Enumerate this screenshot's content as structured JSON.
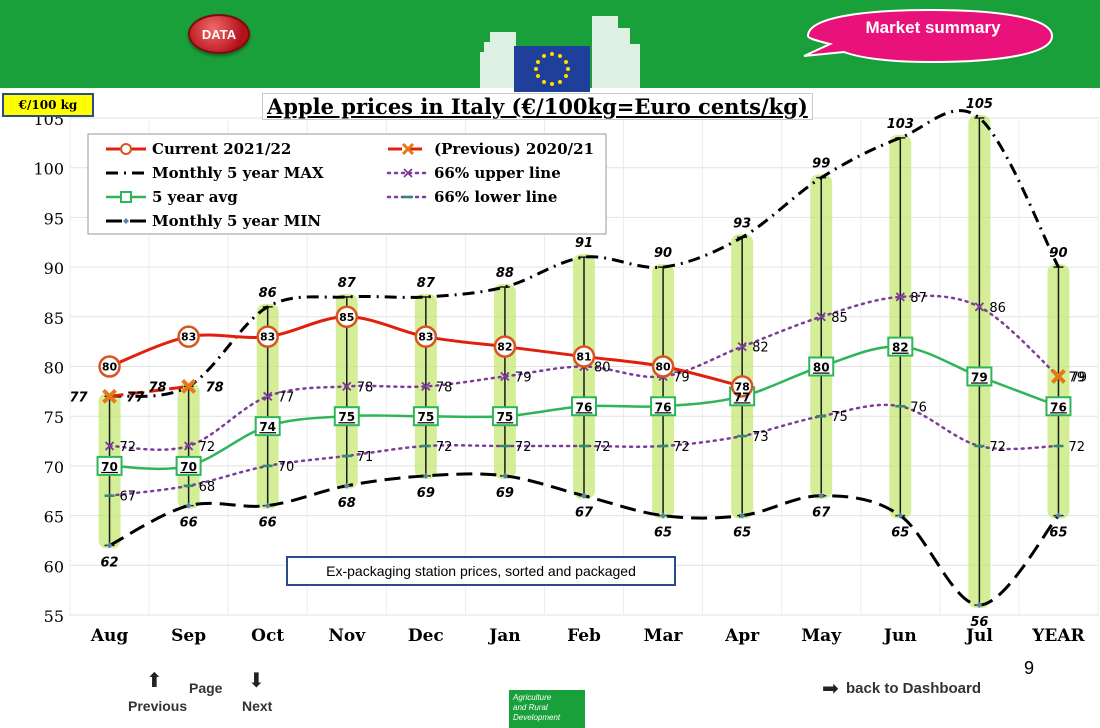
{
  "header": {
    "data_button": "DATA",
    "market_summary": "Market summary"
  },
  "unit_label": "€/100 kg",
  "note": "Ex-packaging station prices, sorted and packaged",
  "page_number": "9",
  "nav": {
    "page": "Page",
    "previous": "Previous",
    "next": "Next",
    "back": "back to Dashboard"
  },
  "footer_logo": [
    "Agriculture",
    "and Rural",
    "Development"
  ],
  "colors": {
    "header_green": "#1aa03a",
    "current": "#e0200d",
    "previous": "#e0200d",
    "five_year_avg": "#2eb558",
    "upper_lower": "#7d3b9c",
    "minmax": "#000000",
    "range_glow": "#c6e876"
  },
  "chart_data": {
    "type": "line",
    "title": "Apple prices in Italy (€/100kg=Euro cents/kg)",
    "categories": [
      "Aug",
      "Sep",
      "Oct",
      "Nov",
      "Dec",
      "Jan",
      "Feb",
      "Mar",
      "Apr",
      "May",
      "Jun",
      "Jul",
      "YEAR"
    ],
    "yticks": [
      55,
      60,
      65,
      70,
      75,
      80,
      85,
      90,
      95,
      100,
      105
    ],
    "ylim": [
      55,
      105
    ],
    "grid": true,
    "legend_position": "top-left",
    "series": [
      {
        "key": "current",
        "name": "Current 2021/22",
        "values": [
          80,
          83,
          83,
          85,
          83,
          82,
          81,
          80,
          78,
          null,
          null,
          null,
          null
        ]
      },
      {
        "key": "previous",
        "name": "(Previous) 2020/21",
        "values": [
          77,
          78,
          null,
          null,
          null,
          null,
          null,
          80,
          null,
          null,
          null,
          null,
          79
        ]
      },
      {
        "key": "max",
        "name": "Monthly 5 year MAX",
        "values": [
          77,
          78,
          86,
          87,
          87,
          88,
          91,
          90,
          93,
          99,
          103,
          105,
          90
        ]
      },
      {
        "key": "upper",
        "name": "66% upper line",
        "values": [
          72,
          72,
          77,
          78,
          78,
          79,
          80,
          79,
          82,
          85,
          87,
          86,
          79
        ]
      },
      {
        "key": "avg",
        "name": "5 year avg",
        "values": [
          70,
          70,
          74,
          75,
          75,
          75,
          76,
          76,
          77,
          80,
          82,
          79,
          76
        ]
      },
      {
        "key": "lower",
        "name": "66% lower line",
        "values": [
          67,
          68,
          70,
          71,
          72,
          72,
          72,
          72,
          73,
          75,
          76,
          72,
          72
        ]
      },
      {
        "key": "min",
        "name": "Monthly 5 year MIN",
        "values": [
          62,
          66,
          66,
          68,
          69,
          69,
          67,
          65,
          65,
          67,
          65,
          56,
          65
        ]
      }
    ]
  }
}
